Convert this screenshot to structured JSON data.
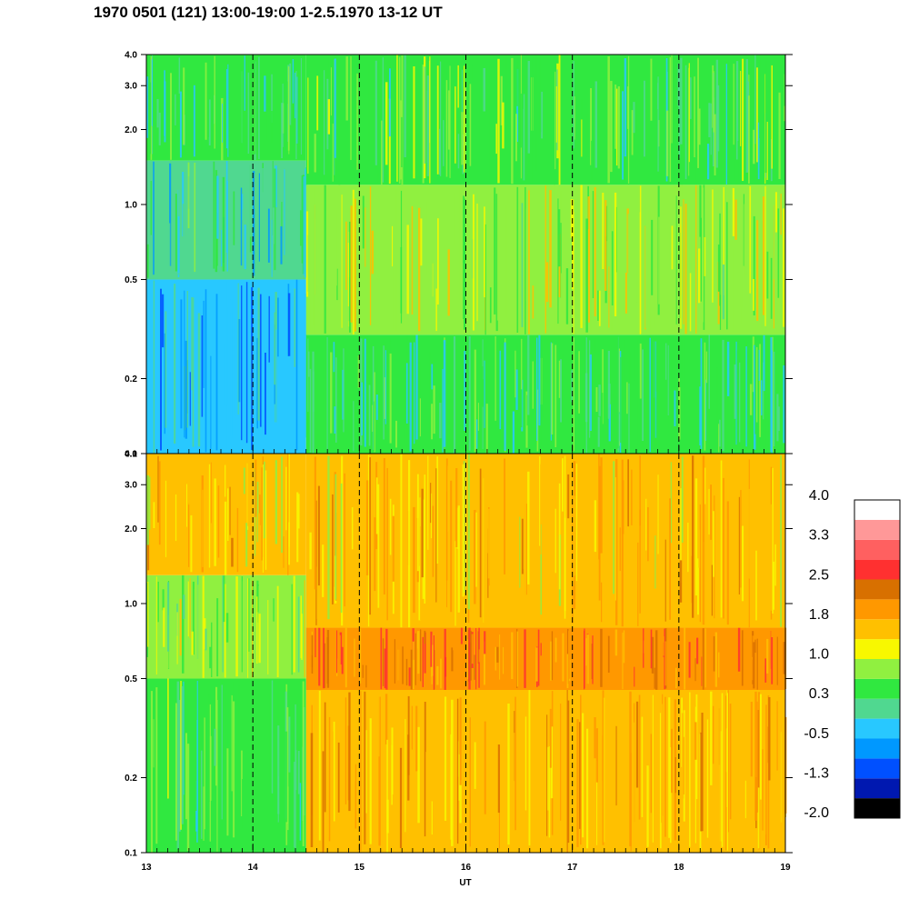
{
  "title": "1970 0501 (121) 13:00-19:00 1-2.5.1970  13-12 UT",
  "chart_data": [
    {
      "type": "heatmap",
      "panel": "upper",
      "x_range": [
        13,
        19
      ],
      "y_range": [
        0.1,
        4.0
      ],
      "y_scale": "log",
      "x_ticks": [
        "13",
        "14",
        "15",
        "16",
        "17",
        "18",
        "19"
      ],
      "y_ticks": [
        "0.1",
        "0.2",
        "0.5",
        "1.0",
        "2.0",
        "3.0",
        "4.0"
      ],
      "dashed_verticals": [
        14,
        15,
        16,
        17,
        18
      ],
      "regions": [
        {
          "x": [
            13.0,
            14.5
          ],
          "y": [
            0.1,
            0.5
          ],
          "level": -0.5
        },
        {
          "x": [
            13.0,
            14.5
          ],
          "y": [
            0.5,
            1.5
          ],
          "level": 0.0
        },
        {
          "x": [
            13.0,
            14.5
          ],
          "y": [
            1.5,
            4.0
          ],
          "level": 0.3
        },
        {
          "x": [
            14.5,
            19.0
          ],
          "y": [
            0.1,
            0.3
          ],
          "level": 0.3
        },
        {
          "x": [
            14.5,
            19.0
          ],
          "y": [
            0.3,
            1.2
          ],
          "level": 0.9
        },
        {
          "x": [
            14.5,
            19.0
          ],
          "y": [
            1.2,
            4.0
          ],
          "level": 0.5
        }
      ]
    },
    {
      "type": "heatmap",
      "panel": "lower",
      "x_range": [
        13,
        19
      ],
      "y_range": [
        0.1,
        4.0
      ],
      "y_scale": "log",
      "xlabel": "UT",
      "x_ticks": [
        "13",
        "14",
        "15",
        "16",
        "17",
        "18",
        "19"
      ],
      "y_ticks": [
        "0.1",
        "0.2",
        "0.5",
        "1.0",
        "2.0",
        "3.0",
        "4.0"
      ],
      "dashed_verticals": [
        14,
        15,
        16,
        17,
        18
      ],
      "regions": [
        {
          "x": [
            13.0,
            14.5
          ],
          "y": [
            0.1,
            0.5
          ],
          "level": 0.4
        },
        {
          "x": [
            13.0,
            14.5
          ],
          "y": [
            0.5,
            1.3
          ],
          "level": 0.8
        },
        {
          "x": [
            13.0,
            14.5
          ],
          "y": [
            1.3,
            4.0
          ],
          "level": 1.5
        },
        {
          "x": [
            14.5,
            19.0
          ],
          "y": [
            0.1,
            0.45
          ],
          "level": 1.7
        },
        {
          "x": [
            14.5,
            19.0
          ],
          "y": [
            0.45,
            0.8
          ],
          "level": 2.1
        },
        {
          "x": [
            14.5,
            19.0
          ],
          "y": [
            0.8,
            4.0
          ],
          "level": 1.6
        }
      ]
    }
  ],
  "colorbar": {
    "labels": [
      "4.0",
      "3.3",
      "2.5",
      "1.8",
      "1.0",
      "0.3",
      "-0.5",
      "-1.3",
      "-2.0"
    ],
    "colors": [
      "#000000",
      "#0018b0",
      "#0050ff",
      "#0098ff",
      "#28c8ff",
      "#50d890",
      "#30e840",
      "#90f040",
      "#f8f800",
      "#ffc000",
      "#ff9800",
      "#d87000",
      "#ff3030",
      "#ff6060",
      "#ff9898",
      "#ffffff"
    ]
  }
}
